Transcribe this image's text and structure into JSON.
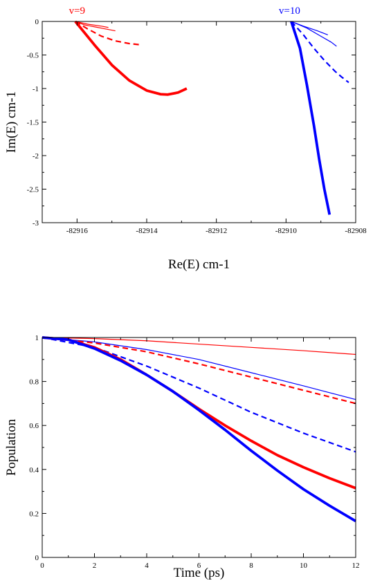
{
  "colors": {
    "red": "#ff0000",
    "blue": "#0000ff",
    "frame": "#000000"
  },
  "chart_data": [
    {
      "type": "line",
      "xlabel": "Re(E) cm-1",
      "ylabel": "Im(E) cm-1",
      "xlim": [
        -82917,
        -82908
      ],
      "ylim": [
        -3,
        0
      ],
      "xticks": [
        -82916,
        -82914,
        -82912,
        -82910,
        -82908
      ],
      "xtick_labels": [
        "-82916",
        "-82914",
        "-82912",
        "-82910",
        "-82908"
      ],
      "yticks": [
        0,
        -0.5,
        -1,
        -1.5,
        -2,
        -2.5,
        -3
      ],
      "ytick_labels": [
        "0",
        "-0.5",
        "-1",
        "-1.5",
        "-2",
        "-2.5",
        "-3"
      ],
      "annotations": [
        {
          "text": "v=9",
          "x": -82916,
          "y": 0.02,
          "color": "#ff0000"
        },
        {
          "text": "v=10",
          "x": -82909.9,
          "y": 0.02,
          "color": "#0000ff"
        }
      ],
      "series": [
        {
          "color": "#ff0000",
          "style": "solid",
          "width": "thin",
          "x": [
            -82916.05,
            -82915.8,
            -82915.5,
            -82915.2,
            -82914.9
          ],
          "y": [
            0,
            -0.05,
            -0.08,
            -0.11,
            -0.14
          ]
        },
        {
          "color": "#ff0000",
          "style": "solid",
          "width": "thin",
          "x": [
            -82916.05,
            -82915.7,
            -82915.3,
            -82915.1
          ],
          "y": [
            0,
            -0.04,
            -0.07,
            -0.09
          ]
        },
        {
          "color": "#ff0000",
          "style": "dashed",
          "width": "medium",
          "x": [
            -82916.05,
            -82915.7,
            -82915.3,
            -82914.9,
            -82914.5,
            -82914.15
          ],
          "y": [
            0,
            -0.11,
            -0.22,
            -0.29,
            -0.33,
            -0.35
          ]
        },
        {
          "color": "#ff0000",
          "style": "solid",
          "width": "thick",
          "x": [
            -82916.05,
            -82915.5,
            -82915.0,
            -82914.5,
            -82914.0,
            -82913.6,
            -82913.4,
            -82913.1,
            -82912.85
          ],
          "y": [
            0,
            -0.35,
            -0.65,
            -0.88,
            -1.03,
            -1.085,
            -1.09,
            -1.06,
            -1.0
          ]
        },
        {
          "color": "#0000ff",
          "style": "solid",
          "width": "thin",
          "x": [
            -82909.85,
            -82909.5,
            -82909.1,
            -82908.8
          ],
          "y": [
            0,
            -0.07,
            -0.14,
            -0.2
          ]
        },
        {
          "color": "#0000ff",
          "style": "solid",
          "width": "thin",
          "x": [
            -82909.85,
            -82909.4,
            -82909.0,
            -82908.7,
            -82908.55
          ],
          "y": [
            0,
            -0.1,
            -0.22,
            -0.31,
            -0.37
          ]
        },
        {
          "color": "#0000ff",
          "style": "dashed",
          "width": "medium",
          "x": [
            -82909.85,
            -82909.5,
            -82909.2,
            -82908.9,
            -82908.6,
            -82908.4,
            -82908.2
          ],
          "y": [
            0,
            -0.2,
            -0.4,
            -0.58,
            -0.74,
            -0.83,
            -0.91
          ]
        },
        {
          "color": "#0000ff",
          "style": "solid",
          "width": "thick",
          "x": [
            -82909.85,
            -82909.6,
            -82909.4,
            -82909.2,
            -82909.05,
            -82908.9,
            -82908.75
          ],
          "y": [
            0,
            -0.4,
            -0.95,
            -1.55,
            -2.05,
            -2.5,
            -2.88
          ]
        }
      ]
    },
    {
      "type": "line",
      "xlabel": "Time (ps)",
      "ylabel": "Population",
      "xlim": [
        0,
        12
      ],
      "ylim": [
        0,
        1
      ],
      "xticks": [
        0,
        2,
        4,
        6,
        8,
        10,
        12
      ],
      "xtick_labels": [
        "0",
        "2",
        "4",
        "6",
        "8",
        "10",
        "12"
      ],
      "yticks": [
        0,
        0.2,
        0.4,
        0.6,
        0.8,
        1
      ],
      "ytick_labels": [
        "0",
        "0.2",
        "0.4",
        "0.6",
        "0.8",
        "1"
      ],
      "annotations": [],
      "series": [
        {
          "color": "#ff0000",
          "style": "solid",
          "width": "thin",
          "x": [
            0,
            2,
            4,
            6,
            8,
            10,
            12
          ],
          "y": [
            1.0,
            0.995,
            0.985,
            0.97,
            0.955,
            0.94,
            0.923
          ]
        },
        {
          "color": "#0000ff",
          "style": "solid",
          "width": "thin",
          "x": [
            0,
            2,
            4,
            6,
            8,
            10,
            12
          ],
          "y": [
            1.0,
            0.98,
            0.945,
            0.9,
            0.84,
            0.78,
            0.718
          ]
        },
        {
          "color": "#ff0000",
          "style": "dashed",
          "width": "medium",
          "x": [
            0,
            2,
            4,
            6,
            8,
            10,
            12
          ],
          "y": [
            1.0,
            0.975,
            0.935,
            0.88,
            0.82,
            0.76,
            0.7
          ]
        },
        {
          "color": "#0000ff",
          "style": "dashed",
          "width": "medium",
          "x": [
            0,
            2,
            4,
            6,
            8,
            10,
            12
          ],
          "y": [
            1.0,
            0.955,
            0.87,
            0.77,
            0.66,
            0.565,
            0.48
          ]
        },
        {
          "color": "#ff0000",
          "style": "solid",
          "width": "thick",
          "x": [
            0,
            1,
            2,
            3,
            4,
            5,
            6,
            7,
            8,
            9,
            10,
            11,
            12
          ],
          "y": [
            1.0,
            0.99,
            0.955,
            0.9,
            0.83,
            0.755,
            0.675,
            0.6,
            0.53,
            0.465,
            0.41,
            0.36,
            0.315
          ]
        },
        {
          "color": "#0000ff",
          "style": "solid",
          "width": "thick",
          "x": [
            0,
            1,
            2,
            3,
            4,
            5,
            6,
            7,
            8,
            9,
            10,
            11,
            12
          ],
          "y": [
            1.0,
            0.99,
            0.95,
            0.895,
            0.83,
            0.755,
            0.67,
            0.58,
            0.485,
            0.395,
            0.31,
            0.235,
            0.165
          ]
        }
      ]
    }
  ]
}
